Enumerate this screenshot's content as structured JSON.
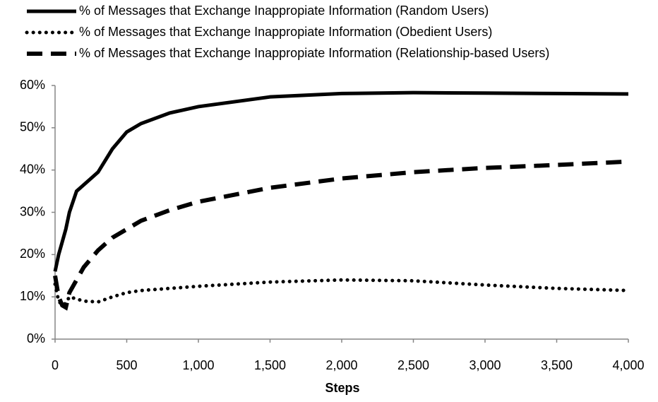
{
  "chart_data": {
    "type": "line",
    "x_label": "Steps",
    "x": [
      0,
      25,
      50,
      75,
      100,
      150,
      200,
      300,
      400,
      500,
      600,
      800,
      1000,
      1500,
      2000,
      2500,
      3000,
      3500,
      4000
    ],
    "series": [
      {
        "name": "% of Messages that Exchange Inappropiate Information (Random Users)",
        "color": "#000000",
        "style": "solid",
        "values": [
          16,
          20,
          23,
          26,
          30,
          35,
          36.5,
          39.5,
          45,
          49,
          51,
          53.5,
          55,
          57.3,
          58.1,
          58.3,
          58.2,
          58.1,
          58
        ]
      },
      {
        "name": "% of Messages that Exchange Inappropiate Information (Obedient Users)",
        "color": "#000000",
        "style": "dotted",
        "values": [
          13,
          9,
          8,
          8.5,
          10,
          9.5,
          9,
          8.8,
          10,
          11,
          11.5,
          12,
          12.5,
          13.5,
          14,
          13.8,
          12.8,
          12,
          11.5
        ]
      },
      {
        "name": "% of Messages that Exchange Inappropiate Information (Relationship-based Users)",
        "color": "#000000",
        "style": "dashed",
        "values": [
          15,
          10,
          8,
          7.5,
          11,
          14,
          17,
          21,
          24,
          26,
          28,
          30.5,
          32.5,
          35.8,
          38,
          39.5,
          40.5,
          41.2,
          42
        ]
      }
    ],
    "xlim": [
      0,
      4000
    ],
    "xticks": [
      0,
      500,
      {
        "value": 1000,
        "label": "1,000"
      },
      {
        "value": 1500,
        "label": "1,500"
      },
      {
        "value": 2000,
        "label": "2,000"
      },
      {
        "value": 2500,
        "label": "2,500"
      },
      {
        "value": 3000,
        "label": "3,000"
      },
      {
        "value": 3500,
        "label": "3,500"
      },
      {
        "value": 4000,
        "label": "4,000"
      }
    ],
    "ylim": [
      0,
      60
    ],
    "yticks": [
      {
        "value": 0,
        "label": "0%"
      },
      {
        "value": 10,
        "label": "10%"
      },
      {
        "value": 20,
        "label": "20%"
      },
      {
        "value": 30,
        "label": "30%"
      },
      {
        "value": 40,
        "label": "40%"
      },
      {
        "value": 50,
        "label": "50%"
      },
      {
        "value": 60,
        "label": "60%"
      }
    ],
    "grid": false,
    "legend": "top"
  }
}
